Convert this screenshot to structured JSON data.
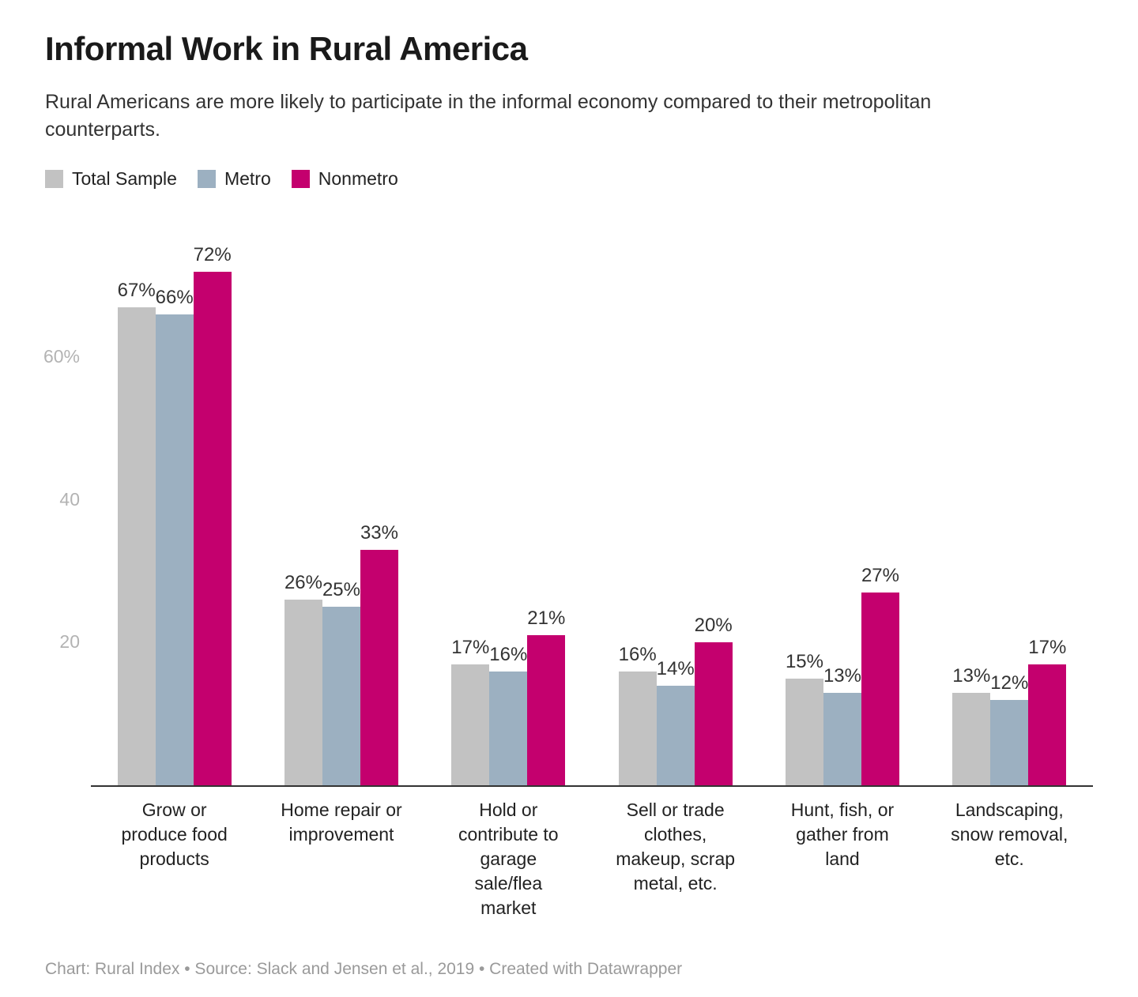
{
  "header": {
    "title": "Informal Work in Rural America",
    "subtitle": "Rural Americans are more likely to participate in the informal economy compared to their metropolitan counterparts."
  },
  "chart_data": {
    "type": "bar",
    "title": "Informal Work in Rural America",
    "categories": [
      "Grow or produce food products",
      "Home repair or improvement",
      "Hold or contribute to garage sale/flea market",
      "Sell or trade clothes, makeup, scrap metal, etc.",
      "Hunt, fish, or gather from land",
      "Landscaping, snow removal, etc."
    ],
    "series": [
      {
        "name": "Total Sample",
        "color": "#c2c2c2",
        "values": [
          67,
          26,
          17,
          16,
          15,
          13
        ]
      },
      {
        "name": "Metro",
        "color": "#9cb0c1",
        "values": [
          66,
          25,
          16,
          14,
          13,
          12
        ]
      },
      {
        "name": "Nonmetro",
        "color": "#c4006e",
        "values": [
          72,
          33,
          21,
          20,
          27,
          17
        ]
      }
    ],
    "value_suffix": "%",
    "ylim": [
      0,
      72
    ],
    "yticks": [
      {
        "value": 20,
        "label": "20"
      },
      {
        "value": 40,
        "label": "40"
      },
      {
        "value": 60,
        "label": "60%"
      }
    ],
    "grid": false,
    "legend_position": "top-left",
    "xlabel": "",
    "ylabel": ""
  },
  "footer": {
    "text": "Chart: Rural Index • Source: Slack and Jensen et al., 2019 • Created with Datawrapper"
  }
}
